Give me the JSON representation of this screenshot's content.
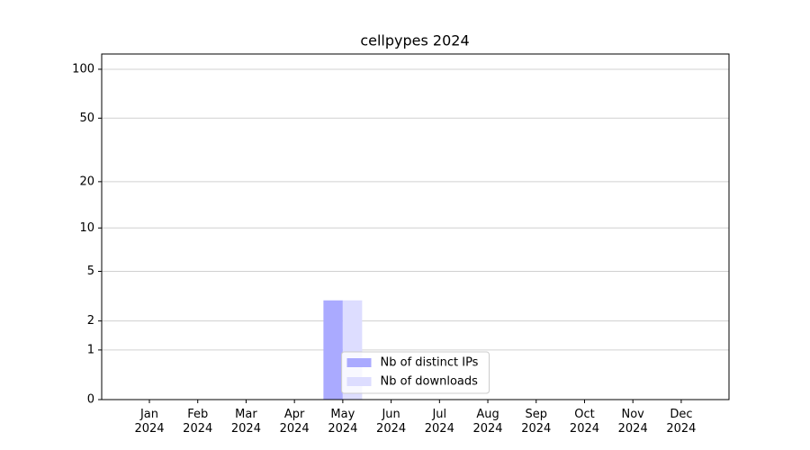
{
  "chart_data": {
    "type": "bar",
    "title": "cellpypes 2024",
    "categories": [
      "Jan\n2024",
      "Feb\n2024",
      "Mar\n2024",
      "Apr\n2024",
      "May\n2024",
      "Jun\n2024",
      "Jul\n2024",
      "Aug\n2024",
      "Sep\n2024",
      "Oct\n2024",
      "Nov\n2024",
      "Dec\n2024"
    ],
    "series": [
      {
        "name": "Nb of distinct IPs",
        "color": "#aaaaff",
        "values": [
          0,
          0,
          0,
          0,
          3,
          0,
          0,
          0,
          0,
          0,
          0,
          0
        ]
      },
      {
        "name": "Nb of downloads",
        "color": "#ddddff",
        "values": [
          0,
          0,
          0,
          0,
          3,
          0,
          0,
          0,
          0,
          0,
          0,
          0
        ]
      }
    ],
    "yscale": "log1p",
    "ylim": [
      0,
      124
    ],
    "yticks": [
      0,
      1,
      2,
      5,
      10,
      20,
      50,
      100
    ],
    "grid": true,
    "legend": "lower center"
  }
}
